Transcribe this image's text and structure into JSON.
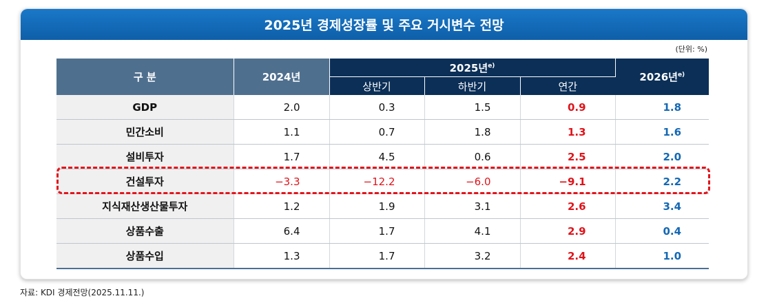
{
  "title": "2025년 경제성장률 및 주요 거시변수 전망",
  "unit": "(단위: %)",
  "headers": {
    "category": "구 분",
    "y2024": "2024년",
    "y2025": "2025년",
    "y2025_sup": "e)",
    "h1": "상반기",
    "h2": "하반기",
    "annual": "연간",
    "y2026": "2026년",
    "y2026_sup": "e)"
  },
  "rows": [
    {
      "label": "GDP",
      "y2024": "2.0",
      "h1": "0.3",
      "h2": "1.5",
      "annual": "0.9",
      "y2026": "1.8"
    },
    {
      "label": "민간소비",
      "y2024": "1.1",
      "h1": "0.7",
      "h2": "1.8",
      "annual": "1.3",
      "y2026": "1.6"
    },
    {
      "label": "설비투자",
      "y2024": "1.7",
      "h1": "4.5",
      "h2": "0.6",
      "annual": "2.5",
      "y2026": "2.0"
    },
    {
      "label": "건설투자",
      "y2024": "−3.3",
      "h1": "−12.2",
      "h2": "−6.0",
      "annual": "−9.1",
      "y2026": "2.2"
    },
    {
      "label": "지식재산생산물투자",
      "y2024": "1.2",
      "h1": "1.9",
      "h2": "3.1",
      "annual": "2.6",
      "y2026": "3.4"
    },
    {
      "label": "상품수출",
      "y2024": "6.4",
      "h1": "1.7",
      "h2": "4.1",
      "annual": "2.9",
      "y2026": "0.4"
    },
    {
      "label": "상품수입",
      "y2024": "1.3",
      "h1": "1.7",
      "h2": "3.2",
      "annual": "2.4",
      "y2026": "1.0"
    }
  ],
  "source": "자료: KDI 경제전망(2025.11.11.)"
}
